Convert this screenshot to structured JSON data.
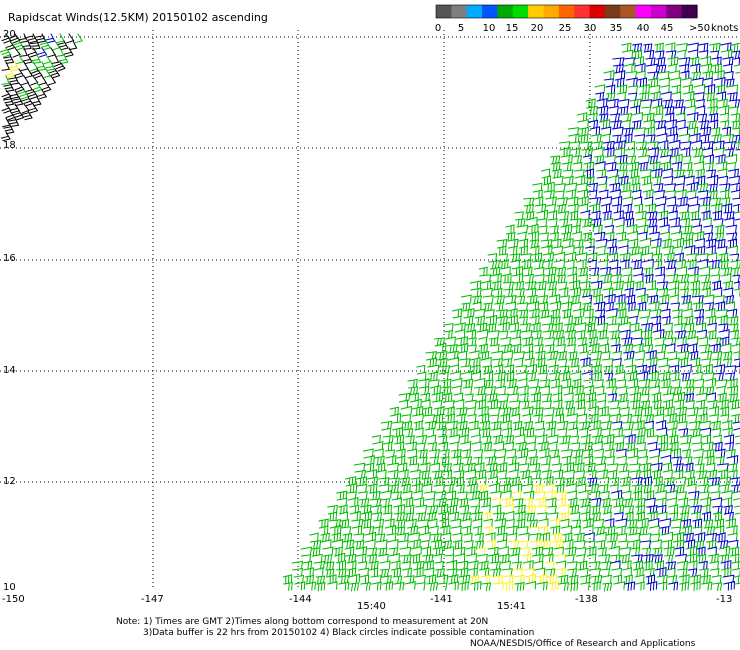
{
  "title": "Rapidscat Winds(12.5KM) 20150102 ascending",
  "legend": {
    "unit": "knots",
    "colors": [
      "#555555",
      "#7f7f7f",
      "#00aaff",
      "#0055ff",
      "#00aa00",
      "#00dd00",
      "#ffcc00",
      "#ffaa00",
      "#ff6600",
      "#ff3333",
      "#dd0000",
      "#7a3b1a",
      "#aa5522",
      "#ff00ff",
      "#cc00cc",
      "#800080",
      "#400050"
    ],
    "ticks": [
      "0",
      "5",
      "10",
      "15",
      "20",
      "25",
      "30",
      "35",
      "40",
      "45",
      ">50"
    ]
  },
  "axes": {
    "lat_labels": [
      "20",
      "18",
      "16",
      "14",
      "12",
      "10"
    ],
    "lon_labels": [
      "-150",
      "-147",
      "-144",
      "-141",
      "-138",
      "-13"
    ],
    "xlim": [
      -150,
      -135
    ],
    "ylim": [
      10,
      20
    ]
  },
  "times": [
    "15:40",
    "15:41"
  ],
  "notes": {
    "line1": "Note: 1) Times are GMT 2)Times along bottom correspond to measurement at 20N",
    "line2": "3)Data buffer is 22 hrs from 20150102 4) Black circles indicate possible contamination",
    "line3": "NOAA/NESDIS/Office of Research and Applications"
  },
  "colors": {
    "barb_main": "#00bb00",
    "barb_blue": "#0000cc",
    "barb_yellow": "#ffee22",
    "barb_black": "#000000",
    "time_text": "#800080"
  }
}
